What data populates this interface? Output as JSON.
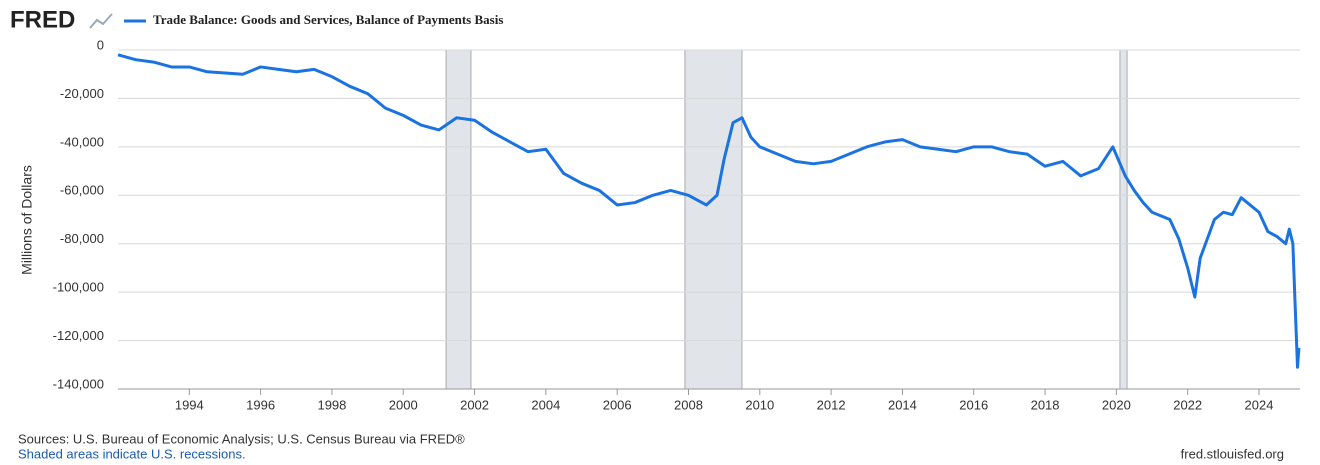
{
  "logo": "FRED",
  "chart_data": {
    "type": "line",
    "y_label": "Millions of Dollars",
    "series": [
      {
        "name": "Trade Balance: Goods and Services, Balance of Payments Basis",
        "color": "#1a73e0",
        "x": [
          1992.0,
          1992.5,
          1993.0,
          1993.5,
          1994.0,
          1994.5,
          1995.0,
          1995.5,
          1996.0,
          1996.5,
          1997.0,
          1997.5,
          1998.0,
          1998.5,
          1999.0,
          1999.5,
          2000.0,
          2000.5,
          2001.0,
          2001.5,
          2002.0,
          2002.5,
          2003.0,
          2003.5,
          2004.0,
          2004.5,
          2005.0,
          2005.5,
          2006.0,
          2006.5,
          2007.0,
          2007.5,
          2008.0,
          2008.5,
          2008.8,
          2009.0,
          2009.25,
          2009.5,
          2009.75,
          2010.0,
          2010.5,
          2011.0,
          2011.5,
          2012.0,
          2012.5,
          2013.0,
          2013.5,
          2014.0,
          2014.5,
          2015.0,
          2015.5,
          2016.0,
          2016.5,
          2017.0,
          2017.5,
          2018.0,
          2018.5,
          2019.0,
          2019.5,
          2019.9,
          2020.25,
          2020.5,
          2020.75,
          2021.0,
          2021.5,
          2021.75,
          2022.0,
          2022.2,
          2022.35,
          2022.5,
          2022.75,
          2023.0,
          2023.25,
          2023.5,
          2023.75,
          2024.0,
          2024.25,
          2024.5,
          2024.75,
          2024.85,
          2024.95,
          2025.0,
          2025.08,
          2025.12
        ],
        "values": [
          -2000,
          -4000,
          -5000,
          -7000,
          -7000,
          -9000,
          -9500,
          -10000,
          -7000,
          -8000,
          -9000,
          -8000,
          -11000,
          -15000,
          -18000,
          -24000,
          -27000,
          -31000,
          -33000,
          -28000,
          -29000,
          -34000,
          -38000,
          -42000,
          -41000,
          -51000,
          -55000,
          -58000,
          -64000,
          -63000,
          -60000,
          -58000,
          -60000,
          -64000,
          -60000,
          -45000,
          -30000,
          -28000,
          -36000,
          -40000,
          -43000,
          -46000,
          -47000,
          -46000,
          -43000,
          -40000,
          -38000,
          -37000,
          -40000,
          -41000,
          -42000,
          -40000,
          -40000,
          -42000,
          -43000,
          -48000,
          -46000,
          -52000,
          -49000,
          -40000,
          -52000,
          -58000,
          -63000,
          -67000,
          -70000,
          -78000,
          -90000,
          -102000,
          -86000,
          -80000,
          -70000,
          -67000,
          -68000,
          -61000,
          -64000,
          -67000,
          -75000,
          -77000,
          -80000,
          -74000,
          -80000,
          -100000,
          -131000,
          -123000
        ]
      }
    ],
    "recessions": [
      [
        2001.2,
        2001.9
      ],
      [
        2007.9,
        2009.5
      ],
      [
        2020.1,
        2020.3
      ]
    ],
    "xlim": [
      1992.0,
      2025.15
    ],
    "xticks": [
      1994,
      1996,
      1998,
      2000,
      2002,
      2004,
      2006,
      2008,
      2010,
      2012,
      2014,
      2016,
      2018,
      2020,
      2022,
      2024
    ],
    "ylim": [
      -140000,
      0
    ],
    "yticks": [
      0,
      {
        "value": -20000,
        "label": "-20,000"
      },
      {
        "value": -40000,
        "label": "-40,000"
      },
      {
        "value": -60000,
        "label": "-60,000"
      },
      {
        "value": -80000,
        "label": "-80,000"
      },
      {
        "value": -100000,
        "label": "-100,000"
      },
      {
        "value": -120000,
        "label": "-120,000"
      },
      {
        "value": -140000,
        "label": "-140,000"
      }
    ],
    "grid": true
  },
  "footer": {
    "sources": "Sources: U.S. Bureau of Economic Analysis; U.S. Census Bureau via FRED®",
    "note": "Shaded areas indicate U.S. recessions.",
    "url": "fred.stlouisfed.org"
  }
}
